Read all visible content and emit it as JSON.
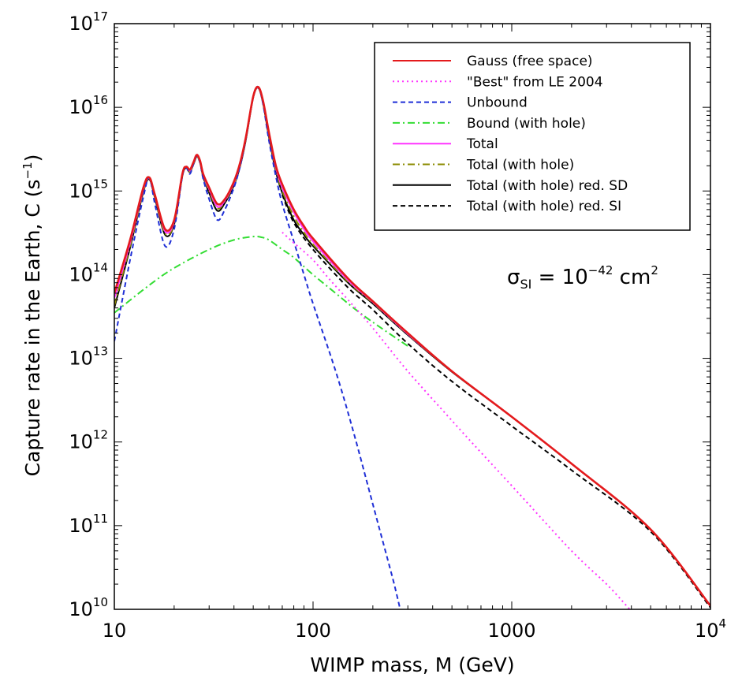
{
  "chart_data": {
    "type": "line",
    "title": "",
    "xlabel": "WIMP mass, M (GeV)",
    "ylabel_main": "Capture rate in the Earth, C (s",
    "ylabel_sup": "−1",
    "ylabel_close": ")",
    "xscale": "log",
    "yscale": "log",
    "xlim": [
      10,
      10000
    ],
    "ylim": [
      10000000000.0,
      1e+17
    ],
    "grid": false,
    "legend_position": "top-right",
    "x_ticks": [
      {
        "value": 10,
        "label": "10"
      },
      {
        "value": 100,
        "label": "100"
      },
      {
        "value": 1000,
        "label": "1000"
      },
      {
        "value": 10000,
        "base": "10",
        "exp": "4"
      }
    ],
    "y_ticks": [
      {
        "value": 10000000000.0,
        "base": "10",
        "exp": "10"
      },
      {
        "value": 100000000000.0,
        "base": "10",
        "exp": "11"
      },
      {
        "value": 1000000000000.0,
        "base": "10",
        "exp": "12"
      },
      {
        "value": 10000000000000.0,
        "base": "10",
        "exp": "13"
      },
      {
        "value": 100000000000000.0,
        "base": "10",
        "exp": "14"
      },
      {
        "value": 1000000000000000.0,
        "base": "10",
        "exp": "15"
      },
      {
        "value": 1e+16,
        "base": "10",
        "exp": "16"
      },
      {
        "value": 1e+17,
        "base": "10",
        "exp": "17"
      }
    ],
    "annotation": {
      "symbol": "σ",
      "sub": "SI",
      "mid": " = 10",
      "sup1": "−42",
      "unit": " cm",
      "sup2": "2"
    },
    "series": [
      {
        "name": "Gauss (free space)",
        "color": "#e41a1c",
        "dash": "solid",
        "x": [
          10,
          12,
          14,
          15,
          16,
          18,
          20,
          22,
          23,
          24,
          25,
          26,
          27,
          28,
          30,
          33,
          36,
          40,
          43,
          46,
          50,
          53,
          56,
          60,
          65,
          70,
          80,
          90,
          100,
          150,
          200,
          300,
          500,
          1000,
          2000,
          5000,
          10000
        ],
        "y": [
          60000000000000.0,
          260000000000000.0,
          1100000000000000.0,
          1450000000000000.0,
          900000000000000.0,
          350000000000000.0,
          450000000000000.0,
          1600000000000000.0,
          1950000000000000.0,
          1800000000000000.0,
          2200000000000000.0,
          2700000000000000.0,
          2300000000000000.0,
          1600000000000000.0,
          1100000000000000.0,
          700000000000000.0,
          800000000000000.0,
          1300000000000000.0,
          2200000000000000.0,
          4500000000000000.0,
          1.35e+16,
          1.75e+16,
          1.2e+16,
          5000000000000000.0,
          2000000000000000.0,
          1200000000000000.0,
          600000000000000.0,
          380000000000000.0,
          270000000000000.0,
          90000000000000.0,
          48000000000000.0,
          20000000000000.0,
          7000000000000.0,
          2000000000000.0,
          550000000000.0,
          90000000000.0,
          11000000000.0
        ]
      },
      {
        "name": "\"Best\" from LE 2004",
        "color": "#ff33ff",
        "dash": "dot",
        "x": [
          70,
          80,
          100,
          120,
          150,
          200,
          300,
          500,
          700,
          1000,
          2000,
          3000,
          4000
        ],
        "y": [
          320000000000000.0,
          240000000000000.0,
          150000000000000.0,
          90000000000000.0,
          50000000000000.0,
          23000000000000.0,
          7000000000000.0,
          1800000000000.0,
          750000000000.0,
          300000000000.0,
          50000000000.0,
          20000000000.0,
          9500000000.0
        ]
      },
      {
        "name": "Unbound",
        "color": "#1f2fd6",
        "dash": "dash",
        "x": [
          10,
          12,
          14,
          15,
          16,
          18,
          20,
          22,
          23,
          24,
          25,
          26,
          27,
          28,
          30,
          33,
          36,
          40,
          43,
          46,
          50,
          53,
          56,
          60,
          65,
          70,
          80,
          90,
          100,
          130,
          160,
          200,
          250,
          300,
          330
        ],
        "y": [
          16000000000000.0,
          150000000000000.0,
          850000000000000.0,
          1450000000000000.0,
          700000000000000.0,
          220000000000000.0,
          350000000000000.0,
          1500000000000000.0,
          1900000000000000.0,
          1600000000000000.0,
          2100000000000000.0,
          2600000000000000.0,
          2200000000000000.0,
          1400000000000000.0,
          800000000000000.0,
          450000000000000.0,
          600000000000000.0,
          1100000000000000.0,
          2000000000000000.0,
          4300000000000000.0,
          1.35e+16,
          1.75e+16,
          1.1e+16,
          4000000000000000.0,
          1500000000000000.0,
          700000000000000.0,
          250000000000000.0,
          100000000000000.0,
          45000000000000.0,
          7000000000000.0,
          1300000000000.0,
          180000000000.0,
          25000000000.0,
          5000000000.0,
          10000000000.0
        ]
      },
      {
        "name": "Bound (with hole)",
        "color": "#33dd33",
        "dash": "dashdot",
        "x": [
          10,
          15,
          20,
          30,
          40,
          50,
          55,
          60,
          70,
          80,
          100,
          130,
          160,
          200,
          300
        ],
        "y": [
          35000000000000.0,
          75000000000000.0,
          120000000000000.0,
          200000000000000.0,
          260000000000000.0,
          285000000000000.0,
          280000000000000.0,
          260000000000000.0,
          200000000000000.0,
          160000000000000.0,
          100000000000000.0,
          60000000000000.0,
          40000000000000.0,
          27000000000000.0,
          14000000000000.0
        ]
      },
      {
        "name": "Total",
        "color": "#ff33ff",
        "dash": "solid",
        "x": [
          10,
          12,
          14,
          15,
          16,
          18,
          20,
          22,
          23,
          24,
          25,
          26,
          27,
          28,
          30,
          33,
          36,
          40,
          43,
          46,
          50,
          53,
          56,
          60,
          65,
          70,
          80,
          90,
          100,
          150,
          200,
          300,
          500,
          1000,
          2000,
          5000,
          10000
        ],
        "y": [
          52000000000000.0,
          240000000000000.0,
          1050000000000000.0,
          1420000000000000.0,
          880000000000000.0,
          330000000000000.0,
          430000000000000.0,
          1600000000000000.0,
          1920000000000000.0,
          1750000000000000.0,
          2150000000000000.0,
          2650000000000000.0,
          2250000000000000.0,
          1550000000000000.0,
          1050000000000000.0,
          650000000000000.0,
          770000000000000.0,
          1250000000000000.0,
          2100000000000000.0,
          4400000000000000.0,
          1.33e+16,
          1.73e+16,
          1.18e+16,
          4800000000000000.0,
          1900000000000000.0,
          1100000000000000.0,
          560000000000000.0,
          350000000000000.0,
          250000000000000.0,
          86000000000000.0,
          47000000000000.0,
          19500000000000.0,
          7000000000000.0,
          2000000000000.0,
          550000000000.0,
          90000000000.0,
          11000000000.0
        ]
      },
      {
        "name": "Total (with hole)",
        "color": "#8b8b00",
        "dash": "dashdot",
        "x": [
          10,
          12,
          14,
          15,
          16,
          18,
          20,
          22,
          23,
          24,
          25,
          26,
          27,
          28,
          30,
          33,
          36,
          40,
          43,
          46,
          50,
          53,
          56,
          60,
          65,
          70,
          80,
          90,
          100,
          150,
          200,
          300,
          500,
          1000,
          2000,
          5000,
          10000
        ],
        "y": [
          43000000000000.0,
          220000000000000.0,
          1000000000000000.0,
          1400000000000000.0,
          850000000000000.0,
          310000000000000.0,
          410000000000000.0,
          1550000000000000.0,
          1900000000000000.0,
          1700000000000000.0,
          2100000000000000.0,
          2600000000000000.0,
          2200000000000000.0,
          1500000000000000.0,
          1000000000000000.0,
          620000000000000.0,
          750000000000000.0,
          1200000000000000.0,
          2050000000000000.0,
          4300000000000000.0,
          1.32e+16,
          1.72e+16,
          1.15e+16,
          4600000000000000.0,
          1800000000000000.0,
          1000000000000000.0,
          500000000000000.0,
          320000000000000.0,
          230000000000000.0,
          82000000000000.0,
          46000000000000.0,
          19300000000000.0,
          7000000000000.0,
          2000000000000.0,
          550000000000.0,
          90000000000.0,
          11000000000.0
        ]
      },
      {
        "name": "Total (with hole) red. SD",
        "color": "#000000",
        "dash": "solid",
        "x": [
          10,
          12,
          14,
          15,
          16,
          18,
          20,
          22,
          23,
          24,
          25,
          26,
          27,
          28,
          30,
          33,
          36,
          40,
          43,
          46,
          50,
          53,
          56,
          60,
          65,
          70,
          80,
          90,
          100,
          150,
          200,
          300,
          500,
          1000,
          2000,
          5000,
          10000
        ],
        "y": [
          40000000000000.0,
          210000000000000.0,
          980000000000000.0,
          1380000000000000.0,
          830000000000000.0,
          300000000000000.0,
          400000000000000.0,
          1520000000000000.0,
          1880000000000000.0,
          1680000000000000.0,
          2080000000000000.0,
          2580000000000000.0,
          2180000000000000.0,
          1480000000000000.0,
          950000000000000.0,
          580000000000000.0,
          720000000000000.0,
          1170000000000000.0,
          2000000000000000.0,
          4200000000000000.0,
          1.31e+16,
          1.71e+16,
          1.13e+16,
          4400000000000000.0,
          1700000000000000.0,
          950000000000000.0,
          450000000000000.0,
          300000000000000.0,
          220000000000000.0,
          80000000000000.0,
          45000000000000.0,
          19000000000000.0,
          6900000000000.0,
          2000000000000.0,
          550000000000.0,
          90000000000.0,
          11000000000.0
        ]
      },
      {
        "name": "Total (with hole) red. SI",
        "color": "#000000",
        "dash": "dash",
        "x": [
          70,
          80,
          100,
          150,
          200,
          300,
          500,
          1000,
          2000,
          5000,
          10000
        ],
        "y": [
          900000000000000.0,
          420000000000000.0,
          200000000000000.0,
          70000000000000.0,
          38000000000000.0,
          15000000000000.0,
          5300000000000.0,
          1550000000000.0,
          460000000000.0,
          85000000000.0,
          10500000000.0
        ]
      }
    ]
  }
}
